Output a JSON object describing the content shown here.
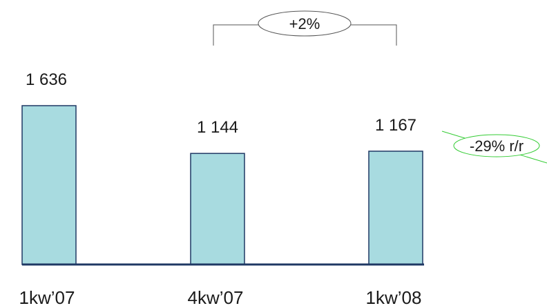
{
  "chart_data": {
    "type": "bar",
    "categories": [
      "1kw’07",
      "4kw’07",
      "1kw’08"
    ],
    "values": [
      1636,
      1144,
      1167
    ],
    "value_labels": [
      "1 636",
      "1 144",
      "1 167"
    ],
    "title": "",
    "xlabel": "",
    "ylabel": "",
    "ylim": [
      0,
      1636
    ],
    "grid": false,
    "annotations": [
      {
        "text": "+2%",
        "from_category": "4kw’07",
        "to_category": "1kw’08"
      },
      {
        "text": "-29% r/r",
        "color": "#33cc33"
      }
    ]
  },
  "colors": {
    "bar_fill": "#a8dbe0",
    "bar_stroke": "#1f3864",
    "annotation_green": "#33cc33",
    "text": "#1a1a1a"
  }
}
